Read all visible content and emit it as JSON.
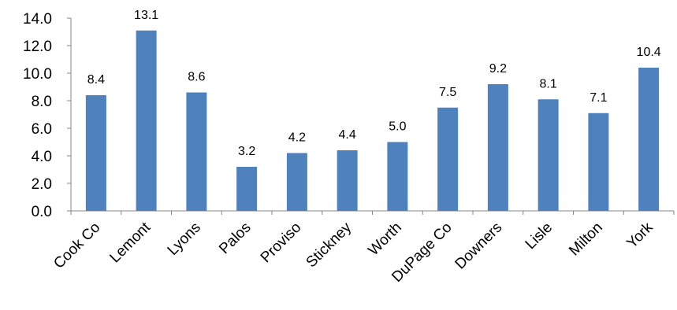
{
  "chart_data": {
    "type": "bar",
    "categories": [
      "Cook Co",
      "Lemont",
      "Lyons",
      "Palos",
      "Proviso",
      "Stickney",
      "Worth",
      "DuPage Co",
      "Downers",
      "Lisle",
      "Milton",
      "York"
    ],
    "values": [
      8.4,
      13.1,
      8.6,
      3.2,
      4.2,
      4.4,
      5.0,
      7.5,
      9.2,
      8.1,
      7.1,
      10.4
    ],
    "data_labels": [
      "8.4",
      "13.1",
      "8.6",
      "3.2",
      "4.2",
      "4.4",
      "5.0",
      "7.5",
      "9.2",
      "8.1",
      "7.1",
      "10.4"
    ],
    "y_ticks": [
      "0.0",
      "2.0",
      "4.0",
      "6.0",
      "8.0",
      "10.0",
      "12.0",
      "14.0"
    ],
    "ylim": [
      0,
      14
    ],
    "grid": false,
    "legend": "none",
    "bar_color": "#4F81BD",
    "axis_color": "#868686"
  }
}
